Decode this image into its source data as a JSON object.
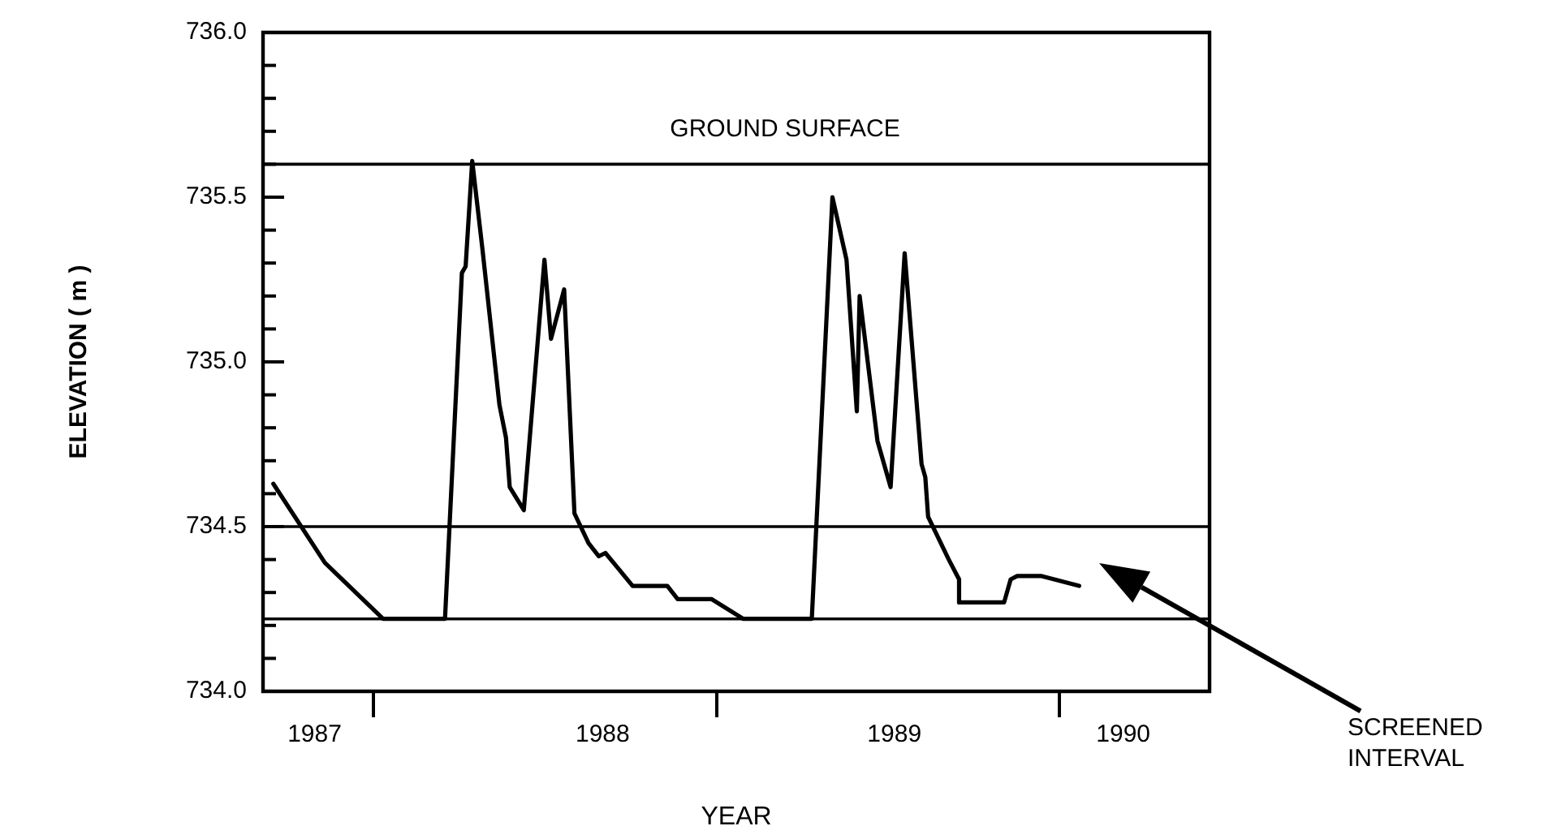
{
  "chart_data": {
    "type": "line",
    "xlabel": "YEAR",
    "ylabel": "ELEVATION ( m )",
    "x": [
      "1987-09-16",
      "1987-11-10",
      "1988-01-11",
      "1988-03-17",
      "1988-04-04",
      "1988-04-08",
      "1988-04-15",
      "1988-04-26",
      "1988-05-14",
      "1988-05-21",
      "1988-05-25",
      "1988-06-09",
      "1988-07-01",
      "1988-07-08",
      "1988-07-22",
      "1988-08-02",
      "1988-08-17",
      "1988-08-28",
      "1988-09-04",
      "1988-10-03",
      "1988-11-09",
      "1988-11-20",
      "1988-12-26",
      "1989-01-29",
      "1989-04-12",
      "1989-05-04",
      "1989-05-19",
      "1989-05-30",
      "1989-06-02",
      "1989-06-21",
      "1989-07-05",
      "1989-07-20",
      "1989-08-07",
      "1989-08-11",
      "1989-08-14",
      "1989-09-05",
      "1989-09-16",
      "1989-09-16",
      "1989-11-03",
      "1989-11-10",
      "1989-11-17",
      "1989-12-13",
      "1990-01-22"
    ],
    "series": [
      {
        "color": "#000000",
        "values": [
          734.63,
          734.39,
          734.22,
          734.22,
          735.27,
          735.29,
          735.61,
          735.34,
          734.87,
          734.77,
          734.62,
          734.55,
          735.31,
          735.07,
          735.22,
          734.54,
          734.45,
          734.41,
          734.42,
          734.32,
          734.32,
          734.28,
          734.28,
          734.22,
          734.22,
          735.5,
          735.31,
          734.85,
          735.2,
          734.76,
          734.62,
          735.33,
          734.69,
          734.65,
          734.53,
          734.4,
          734.34,
          734.27,
          734.27,
          734.34,
          734.35,
          734.35,
          734.32
        ]
      }
    ],
    "xlim": [
      "1987-09-05",
      "1990-06-10"
    ],
    "xticks": [
      {
        "value": "1987-10-30",
        "label": "1987"
      },
      {
        "value": "1988-01-01",
        "label": null
      },
      {
        "value": "1988-09-01",
        "label": "1988"
      },
      {
        "value": "1989-01-01",
        "label": null
      },
      {
        "value": "1989-07-09",
        "label": "1989"
      },
      {
        "value": "1990-01-01",
        "label": null
      },
      {
        "value": "1990-03-10",
        "label": "1990"
      }
    ],
    "ylim": [
      734,
      736
    ],
    "yticks": [
      {
        "value": 734,
        "label": "734.0"
      },
      {
        "value": 734.1,
        "label": null
      },
      {
        "value": 734.2,
        "label": null
      },
      {
        "value": 734.3,
        "label": null
      },
      {
        "value": 734.4,
        "label": null
      },
      {
        "value": 734.5,
        "label": "734.5"
      },
      {
        "value": 734.6,
        "label": null
      },
      {
        "value": 734.7,
        "label": null
      },
      {
        "value": 734.8,
        "label": null
      },
      {
        "value": 734.9,
        "label": null
      },
      {
        "value": 735,
        "label": "735.0"
      },
      {
        "value": 735.1,
        "label": null
      },
      {
        "value": 735.2,
        "label": null
      },
      {
        "value": 735.3,
        "label": null
      },
      {
        "value": 735.4,
        "label": null
      },
      {
        "value": 735.5,
        "label": "735.5"
      },
      {
        "value": 735.6,
        "label": null
      },
      {
        "value": 735.7,
        "label": null
      },
      {
        "value": 735.8,
        "label": null
      },
      {
        "value": 735.9,
        "label": null
      },
      {
        "value": 736,
        "label": "736.0"
      }
    ],
    "ref_lines": [
      {
        "axis": "y",
        "value": 735.6,
        "label": "GROUND SURFACE",
        "color": "#000000"
      },
      {
        "axis": "y",
        "value": 734.5,
        "color": "#000000"
      },
      {
        "axis": "y",
        "value": 734.22,
        "color": "#000000"
      }
    ],
    "annotations": [
      "SCREENED INTERVAL"
    ],
    "grid": false,
    "legend": false,
    "marker": "none",
    "line_style": "solid"
  }
}
